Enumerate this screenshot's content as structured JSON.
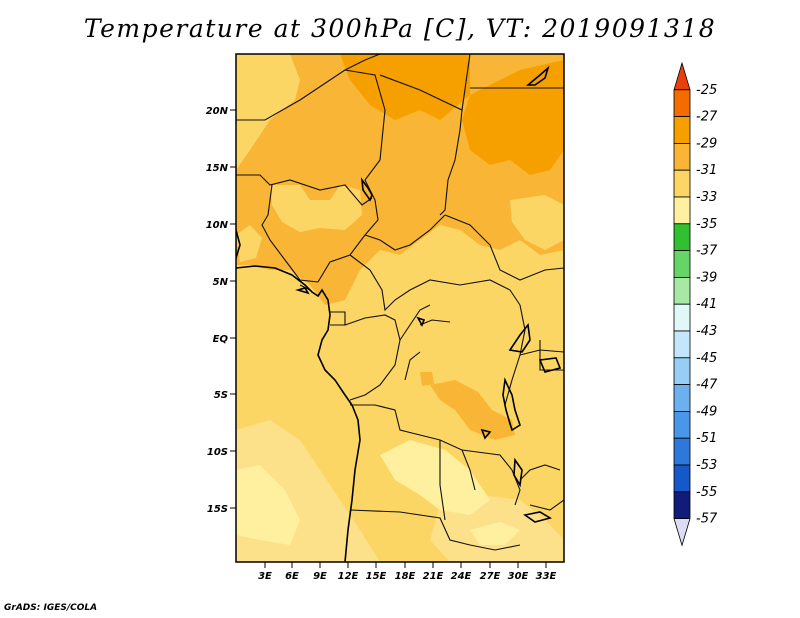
{
  "title": "Temperature at 300hPa [C], VT: 2019091318",
  "credit": "GrADS: IGES/COLA",
  "map": {
    "lat_labels": [
      "20N",
      "15N",
      "10N",
      "5N",
      "EQ",
      "5S",
      "10S",
      "15S"
    ],
    "lon_labels": [
      "3E",
      "6E",
      "9E",
      "12E",
      "15E",
      "18E",
      "21E",
      "24E",
      "27E",
      "30E",
      "33E"
    ]
  },
  "colorbar": {
    "levels": [
      "-25",
      "-27",
      "-29",
      "-31",
      "-33",
      "-35",
      "-37",
      "-39",
      "-41",
      "-43",
      "-45",
      "-47",
      "-49",
      "-51",
      "-53",
      "-55",
      "-57"
    ],
    "colors": [
      "#e8400c",
      "#f46c00",
      "#f6a000",
      "#f9b535",
      "#fcd665",
      "#fff0a0",
      "#30c030",
      "#66d466",
      "#a8e8a4",
      "#e0f8f8",
      "#c4e6fa",
      "#98cef6",
      "#6cb0ee",
      "#4a96e8",
      "#2e78dc",
      "#1658c8",
      "#101c7a",
      "#dcdcf4"
    ]
  },
  "legend_colors": {
    "c27": "#f6a000",
    "c29": "#f9b535",
    "c31": "#fcd665",
    "c33": "#fde08a",
    "c35": "#fff0a0"
  }
}
